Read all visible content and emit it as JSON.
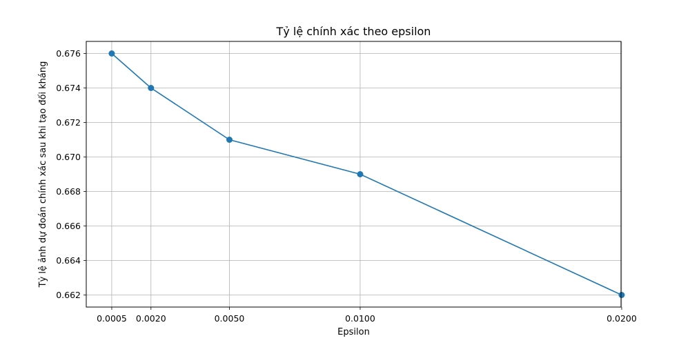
{
  "chart_data": {
    "type": "line",
    "title": "Tỷ lệ chính xác theo epsilon",
    "xlabel": "Epsilon",
    "ylabel": "Tỷ lệ ảnh dự đoán chính xác sau khi tạo đối kháng",
    "x": [
      0.0005,
      0.002,
      0.005,
      0.01,
      0.02
    ],
    "x_tick_labels": [
      "0.0005",
      "0.0020",
      "0.0050",
      "0.0100",
      "0.0200"
    ],
    "series": [
      {
        "values": [
          0.676,
          0.674,
          0.671,
          0.669,
          0.662
        ],
        "color": "#1f77b4",
        "marker": "circle"
      }
    ],
    "y_ticks": [
      0.662,
      0.664,
      0.666,
      0.668,
      0.67,
      0.672,
      0.674,
      0.676
    ],
    "y_tick_labels": [
      "0.662",
      "0.664",
      "0.666",
      "0.668",
      "0.670",
      "0.672",
      "0.674",
      "0.676"
    ],
    "xlim": [
      -0.000475,
      0.019975
    ],
    "ylim": [
      0.6613,
      0.6767
    ],
    "grid": true
  }
}
